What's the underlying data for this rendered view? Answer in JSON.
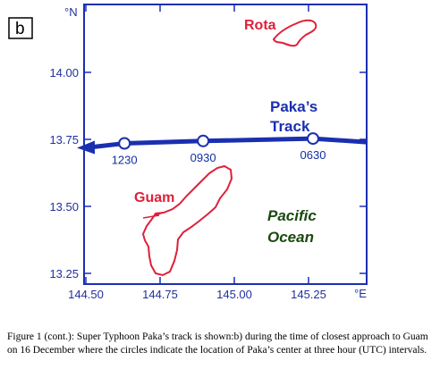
{
  "panel_label": "b",
  "lat_axis": {
    "unit_label": "°N",
    "ticks": [
      {
        "value": 14.0,
        "label": "14.00"
      },
      {
        "value": 13.75,
        "label": "13.75"
      },
      {
        "value": 13.5,
        "label": "13.50"
      },
      {
        "value": 13.25,
        "label": "13.25"
      }
    ]
  },
  "lon_axis": {
    "unit_label": "°E",
    "ticks": [
      {
        "value": 144.5,
        "label": "144.50"
      },
      {
        "value": 144.75,
        "label": "144.75"
      },
      {
        "value": 145.0,
        "label": "145.00"
      },
      {
        "value": 145.25,
        "label": "145.25"
      }
    ]
  },
  "islands": {
    "rota": "Rota",
    "guam": "Guam"
  },
  "track": {
    "label_line1": "Paka’s",
    "label_line2": "Track",
    "points": [
      {
        "time": "1230",
        "lon": 144.63,
        "lat": 13.735
      },
      {
        "time": "0930",
        "lon": 144.895,
        "lat": 13.744
      },
      {
        "time": "0630",
        "lon": 145.265,
        "lat": 13.753
      }
    ]
  },
  "ocean": {
    "line1": "Pacific",
    "line2": "Ocean"
  },
  "caption": "Figure 1 (cont.): Super Typhoon Paka’s track is shown:b) during the time of closest approach to Guam on 16 December where the circles indicate the location of Paka’s center at three hour (UTC) intervals.",
  "colors": {
    "axis": "#1a2fb0",
    "track": "#1a2fb0",
    "island_outline": "#e0203a",
    "ocean_text": "#1a4a10"
  }
}
